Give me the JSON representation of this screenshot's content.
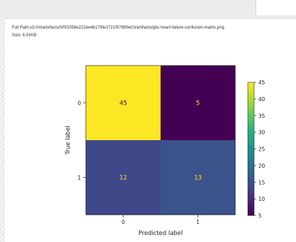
{
  "file_info": {
    "path_label": "Full Path:",
    "path_value": "s3://mlartefacts/0/0f1058e222ee4b179fe1721f57899e03/artifacts/gbc-heart-failure-confusion-matrix.png",
    "size_label": "Size:",
    "size_value": "6.91KB"
  },
  "chart_data": {
    "type": "heatmap",
    "xlabel": "Predicted label",
    "ylabel": "True label",
    "x_categories": [
      "0",
      "1"
    ],
    "y_categories": [
      "0",
      "1"
    ],
    "values": [
      [
        45,
        5
      ],
      [
        12,
        13
      ]
    ],
    "colormap": "viridis",
    "colorbar": {
      "range": [
        5,
        45
      ],
      "ticks": [
        "5",
        "10",
        "15",
        "20",
        "25",
        "30",
        "35",
        "40",
        "45"
      ]
    },
    "colors": {
      "cell_0_0": "#fde725",
      "cell_0_1": "#440154",
      "cell_1_0": "#3f4889",
      "cell_1_1": "#3b528b",
      "label_on_light": "#440154",
      "label_on_dark": "#fde725"
    }
  }
}
